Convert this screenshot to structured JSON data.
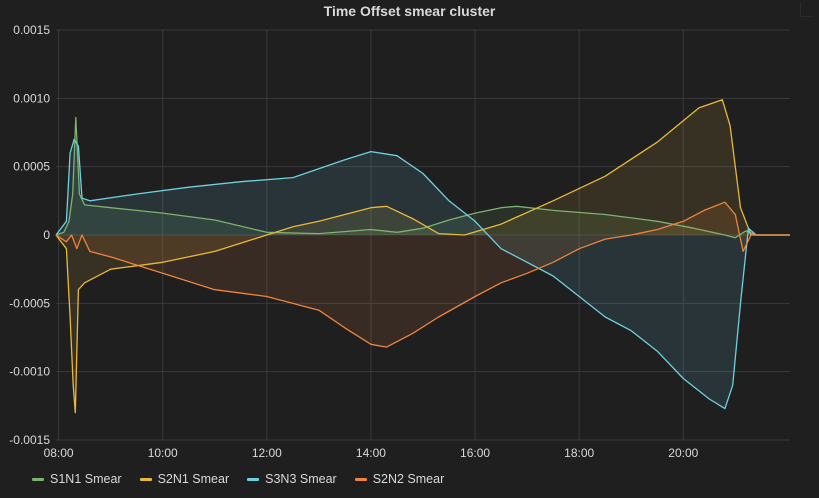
{
  "panel": {
    "title": "Time Offset smear cluster"
  },
  "colors": {
    "background": "#1f1f20",
    "grid": "#3a3a3c",
    "text": "#d8d9da"
  },
  "chart_data": {
    "type": "line",
    "title": "Time Offset smear cluster",
    "xlabel": "",
    "ylabel": "",
    "x_range_hours": [
      7.95,
      22.05
    ],
    "ylim": [
      -0.0015,
      0.0015
    ],
    "y_ticks": [
      0.0015,
      0.001,
      0.0005,
      0,
      -0.0005,
      -0.001,
      -0.0015
    ],
    "y_tick_labels": [
      "0.0015",
      "0.0010",
      "0.0005",
      "0",
      "-0.0005",
      "-0.0010",
      "-0.0015"
    ],
    "x_ticks_hours": [
      8,
      10,
      12,
      14,
      16,
      18,
      20
    ],
    "x_tick_labels": [
      "08:00",
      "10:00",
      "12:00",
      "14:00",
      "16:00",
      "18:00",
      "20:00"
    ],
    "grid": true,
    "fill": true,
    "legend_position": "bottom-left",
    "series": [
      {
        "name": "S1N1 Smear",
        "color": "#7eb26d",
        "points": [
          [
            7.95,
            0
          ],
          [
            8.1,
            2e-05
          ],
          [
            8.2,
            0.0001
          ],
          [
            8.27,
            0.0003
          ],
          [
            8.33,
            0.00086
          ],
          [
            8.4,
            0.0003
          ],
          [
            8.5,
            0.00022
          ],
          [
            9.0,
            0.0002
          ],
          [
            10.0,
            0.00016
          ],
          [
            11.0,
            0.00011
          ],
          [
            12.0,
            2e-05
          ],
          [
            13.0,
            1e-05
          ],
          [
            14.0,
            4e-05
          ],
          [
            14.5,
            2e-05
          ],
          [
            15.0,
            5e-05
          ],
          [
            15.5,
            0.00011
          ],
          [
            16.0,
            0.00016
          ],
          [
            16.5,
            0.0002
          ],
          [
            16.8,
            0.00021
          ],
          [
            17.5,
            0.00018
          ],
          [
            18.5,
            0.00015
          ],
          [
            19.5,
            0.0001
          ],
          [
            20.2,
            5e-05
          ],
          [
            20.8,
            0.0
          ],
          [
            21.0,
            -2e-05
          ],
          [
            21.2,
            3e-05
          ],
          [
            21.4,
            0
          ],
          [
            22.05,
            0
          ]
        ]
      },
      {
        "name": "S2N1 Smear",
        "color": "#eab839",
        "points": [
          [
            7.95,
            0
          ],
          [
            8.15,
            -0.0001
          ],
          [
            8.22,
            -0.0006
          ],
          [
            8.28,
            -0.0011
          ],
          [
            8.32,
            -0.0013
          ],
          [
            8.38,
            -0.0004
          ],
          [
            8.5,
            -0.00035
          ],
          [
            9.0,
            -0.00025
          ],
          [
            10.0,
            -0.0002
          ],
          [
            11.0,
            -0.00012
          ],
          [
            12.0,
            0.0
          ],
          [
            12.5,
            6e-05
          ],
          [
            13.0,
            0.0001
          ],
          [
            14.0,
            0.0002
          ],
          [
            14.3,
            0.00021
          ],
          [
            14.8,
            0.00012
          ],
          [
            15.3,
            1e-05
          ],
          [
            15.8,
            0.0
          ],
          [
            16.5,
            8e-05
          ],
          [
            17.5,
            0.00025
          ],
          [
            18.5,
            0.00043
          ],
          [
            19.5,
            0.00068
          ],
          [
            20.3,
            0.00093
          ],
          [
            20.75,
            0.00099
          ],
          [
            20.9,
            0.0008
          ],
          [
            21.1,
            0.0002
          ],
          [
            21.3,
            0.0
          ],
          [
            22.05,
            0
          ]
        ]
      },
      {
        "name": "S3N3 Smear",
        "color": "#6ed0e0",
        "points": [
          [
            7.95,
            0
          ],
          [
            8.15,
            0.0001
          ],
          [
            8.22,
            0.0006
          ],
          [
            8.3,
            0.0007
          ],
          [
            8.38,
            0.00065
          ],
          [
            8.45,
            0.00027
          ],
          [
            8.6,
            0.00025
          ],
          [
            9.5,
            0.0003
          ],
          [
            10.5,
            0.00035
          ],
          [
            11.5,
            0.00039
          ],
          [
            12.5,
            0.00042
          ],
          [
            13.5,
            0.00055
          ],
          [
            14.0,
            0.00061
          ],
          [
            14.5,
            0.00058
          ],
          [
            15.0,
            0.00045
          ],
          [
            15.5,
            0.00025
          ],
          [
            16.0,
            0.0001
          ],
          [
            16.5,
            -0.0001
          ],
          [
            17.0,
            -0.0002
          ],
          [
            17.5,
            -0.0003
          ],
          [
            18.0,
            -0.00045
          ],
          [
            18.5,
            -0.0006
          ],
          [
            19.0,
            -0.0007
          ],
          [
            19.5,
            -0.00085
          ],
          [
            20.0,
            -0.00105
          ],
          [
            20.5,
            -0.0012
          ],
          [
            20.8,
            -0.00127
          ],
          [
            20.95,
            -0.0011
          ],
          [
            21.1,
            -0.0005
          ],
          [
            21.25,
            5e-05
          ],
          [
            21.4,
            0
          ],
          [
            22.05,
            0
          ]
        ]
      },
      {
        "name": "S2N2 Smear",
        "color": "#ef843c",
        "points": [
          [
            7.95,
            0
          ],
          [
            8.15,
            -5e-05
          ],
          [
            8.25,
            0.0
          ],
          [
            8.35,
            -0.0001
          ],
          [
            8.45,
            0.0
          ],
          [
            8.6,
            -0.00012
          ],
          [
            9.0,
            -0.00016
          ],
          [
            10.0,
            -0.00028
          ],
          [
            11.0,
            -0.0004
          ],
          [
            12.0,
            -0.00045
          ],
          [
            13.0,
            -0.00055
          ],
          [
            13.5,
            -0.00068
          ],
          [
            14.0,
            -0.0008
          ],
          [
            14.3,
            -0.00082
          ],
          [
            14.8,
            -0.00072
          ],
          [
            15.3,
            -0.0006
          ],
          [
            16.0,
            -0.00045
          ],
          [
            16.5,
            -0.00035
          ],
          [
            17.0,
            -0.00028
          ],
          [
            17.5,
            -0.0002
          ],
          [
            18.0,
            -0.0001
          ],
          [
            18.5,
            -3e-05
          ],
          [
            19.0,
            0.0
          ],
          [
            19.5,
            4e-05
          ],
          [
            20.0,
            0.0001
          ],
          [
            20.4,
            0.00018
          ],
          [
            20.8,
            0.00024
          ],
          [
            21.0,
            0.00015
          ],
          [
            21.15,
            -0.00012
          ],
          [
            21.3,
            0.0
          ],
          [
            22.05,
            0
          ]
        ]
      }
    ]
  }
}
